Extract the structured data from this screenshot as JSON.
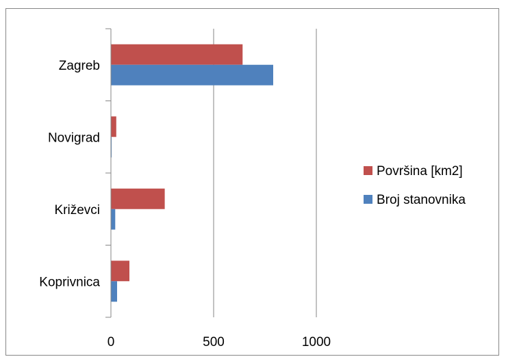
{
  "chart_data": {
    "type": "bar",
    "orientation": "horizontal",
    "title": "",
    "xlabel": "",
    "ylabel": "",
    "categories": [
      "Zagreb",
      "Novigrad",
      "Križevci",
      "Koprivnica"
    ],
    "series": [
      {
        "name": "Površina [km2]",
        "color": "#C0504D",
        "values": [
          641,
          26,
          262,
          90
        ]
      },
      {
        "name": "Broj stanovnika",
        "color": "#4F81BD",
        "values": [
          790,
          3,
          21,
          30
        ]
      }
    ],
    "xlim": [
      0,
      1000
    ],
    "xticks": [
      "0",
      "500",
      "1000"
    ],
    "xgrid": true,
    "legend": "right"
  }
}
